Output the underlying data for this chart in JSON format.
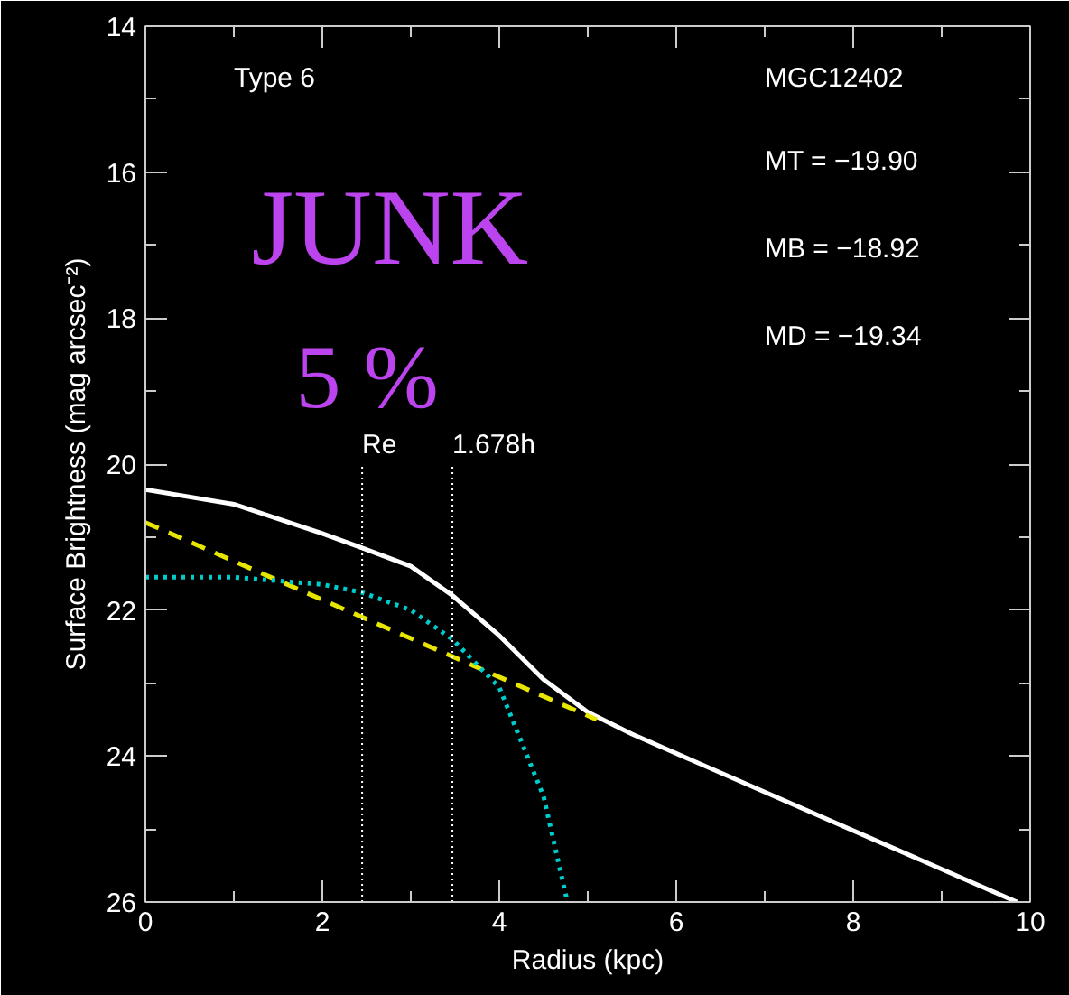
{
  "chart_data": {
    "type": "line",
    "xlabel": "Radius (kpc)",
    "ylabel": "Surface Brightness (mag arcsec⁻²)",
    "xlim": [
      0,
      10
    ],
    "ylim": [
      26,
      14
    ],
    "xticks": [
      0,
      2,
      4,
      6,
      8,
      10
    ],
    "yticks": [
      14,
      16,
      18,
      20,
      22,
      24,
      26
    ],
    "series": [
      {
        "color": "#ffffff",
        "line_style": "solid",
        "x": [
          0,
          1,
          2,
          2.45,
          3,
          3.47,
          4,
          4.5,
          5,
          5.5,
          9.85
        ],
        "values": [
          20.35,
          20.55,
          20.95,
          21.15,
          21.4,
          21.8,
          22.35,
          22.95,
          23.4,
          23.7,
          26
        ]
      },
      {
        "color": "#e6e600",
        "line_style": "dashed",
        "x": [
          0,
          5.1
        ],
        "values": [
          20.8,
          23.5
        ]
      },
      {
        "color": "#00cccc",
        "line_style": "dotted",
        "x": [
          0,
          1,
          1.5,
          2,
          2.45,
          3,
          3.47,
          4,
          4.5,
          4.77
        ],
        "values": [
          21.55,
          21.55,
          21.6,
          21.65,
          21.76,
          22.0,
          22.4,
          23.06,
          24.55,
          26
        ]
      }
    ],
    "ref_lines": [
      {
        "axis": "x",
        "value": 2.45,
        "label": "Re"
      },
      {
        "axis": "x",
        "value": 3.47,
        "label": "1.678h"
      }
    ],
    "annotations": [
      "Type 6",
      "MGC12402",
      "MT = −19.90",
      "MB = −18.92",
      "MD = −19.34",
      "JUNK",
      "5 %"
    ]
  }
}
